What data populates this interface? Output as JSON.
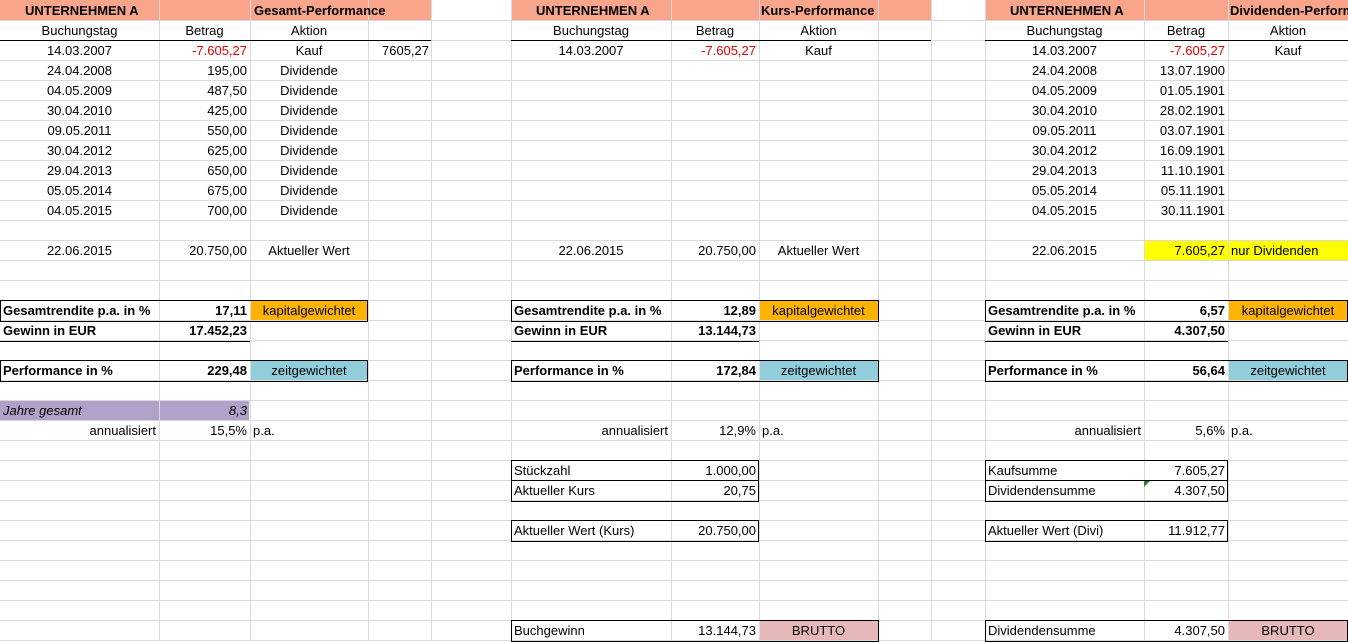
{
  "colors": {
    "header": "#f8a58c",
    "orange": "#fdb300",
    "blue": "#92cddc",
    "purple": "#b1a0c7",
    "yellow": "#ffff00",
    "pink": "#e6b9b8",
    "negative": "#e00000",
    "grid": "#dadada"
  },
  "blocks": [
    {
      "company": "UNTERNEHMEN A",
      "title": "Gesamt-Performance",
      "headers": [
        "Buchungstag",
        "Betrag",
        "Aktion"
      ],
      "rows": [
        {
          "date": "14.03.2007",
          "amount": "-7.605,27",
          "action": "Kauf",
          "extra": "7605,27"
        },
        {
          "date": "24.04.2008",
          "amount": "195,00",
          "action": "Dividende"
        },
        {
          "date": "04.05.2009",
          "amount": "487,50",
          "action": "Dividende"
        },
        {
          "date": "30.04.2010",
          "amount": "425,00",
          "action": "Dividende"
        },
        {
          "date": "09.05.2011",
          "amount": "550,00",
          "action": "Dividende"
        },
        {
          "date": "30.04.2012",
          "amount": "625,00",
          "action": "Dividende"
        },
        {
          "date": "29.04.2013",
          "amount": "650,00",
          "action": "Dividende"
        },
        {
          "date": "05.05.2014",
          "amount": "675,00",
          "action": "Dividende"
        },
        {
          "date": "04.05.2015",
          "amount": "700,00",
          "action": "Dividende"
        }
      ],
      "current": {
        "date": "22.06.2015",
        "amount": "20.750,00",
        "label": "Aktueller Wert"
      },
      "rendite": {
        "label": "Gesamtrendite p.a. in %",
        "value": "17,11",
        "tag": "kapitalgewichtet"
      },
      "gewinn": {
        "label": "Gewinn in EUR",
        "value": "17.452,23"
      },
      "performance": {
        "label": "Performance in %",
        "value": "229,48",
        "tag": "zeitgewichtet"
      },
      "jahre": {
        "label": "Jahre gesamt",
        "value": "8,3"
      },
      "annual": {
        "label": "annualisiert",
        "value": "15,5%",
        "unit": "p.a."
      }
    },
    {
      "company": "UNTERNEHMEN A",
      "title": "Kurs-Performance",
      "headers": [
        "Buchungstag",
        "Betrag",
        "Aktion"
      ],
      "rows": [
        {
          "date": "14.03.2007",
          "amount": "-7.605,27",
          "action": "Kauf"
        }
      ],
      "current": {
        "date": "22.06.2015",
        "amount": "20.750,00",
        "label": "Aktueller Wert"
      },
      "rendite": {
        "label": "Gesamtrendite p.a. in %",
        "value": "12,89",
        "tag": "kapitalgewichtet"
      },
      "gewinn": {
        "label": "Gewinn in EUR",
        "value": "13.144,73"
      },
      "performance": {
        "label": "Performance in %",
        "value": "172,84",
        "tag": "zeitgewichtet"
      },
      "annual": {
        "label": "annualisiert",
        "value": "12,9%",
        "unit": "p.a."
      },
      "stueck": {
        "label": "Stückzahl",
        "value": "1.000,00"
      },
      "kurs": {
        "label": "Aktueller Kurs",
        "value": "20,75"
      },
      "wert": {
        "label": "Aktueller Wert (Kurs)",
        "value": "20.750,00"
      },
      "buch": {
        "label": "Buchgewinn",
        "value": "13.144,73",
        "tag": "BRUTTO"
      }
    },
    {
      "company": "UNTERNEHMEN A",
      "title": "Dividenden-Performance",
      "headers": [
        "Buchungstag",
        "Betrag",
        "Aktion"
      ],
      "rows": [
        {
          "date": "14.03.2007",
          "amount": "-7.605,27",
          "action": "Kauf"
        },
        {
          "date": "24.04.2008",
          "amount": "13.07.1900"
        },
        {
          "date": "04.05.2009",
          "amount": "01.05.1901"
        },
        {
          "date": "30.04.2010",
          "amount": "28.02.1901"
        },
        {
          "date": "09.05.2011",
          "amount": "03.07.1901"
        },
        {
          "date": "30.04.2012",
          "amount": "16.09.1901"
        },
        {
          "date": "29.04.2013",
          "amount": "11.10.1901"
        },
        {
          "date": "05.05.2014",
          "amount": "05.11.1901"
        },
        {
          "date": "04.05.2015",
          "amount": "30.11.1901"
        }
      ],
      "current": {
        "date": "22.06.2015",
        "amount": "7.605,27",
        "label": "nur Dividenden"
      },
      "rendite": {
        "label": "Gesamtrendite p.a. in %",
        "value": "6,57",
        "tag": "kapitalgewichtet"
      },
      "gewinn": {
        "label": "Gewinn in EUR",
        "value": "4.307,50"
      },
      "performance": {
        "label": "Performance in %",
        "value": "56,64",
        "tag": "zeitgewichtet"
      },
      "annual": {
        "label": "annualisiert",
        "value": "5,6%",
        "unit": "p.a."
      },
      "kaufsumme": {
        "label": "Kaufsumme",
        "value": "7.605,27"
      },
      "divsumme": {
        "label": "Dividendensumme",
        "value": "4.307,50"
      },
      "wert": {
        "label": "Aktueller Wert (Divi)",
        "value": "11.912,77"
      },
      "divsumme2": {
        "label": "Dividendensumme",
        "value": "4.307,50",
        "tag": "BRUTTO"
      }
    }
  ]
}
